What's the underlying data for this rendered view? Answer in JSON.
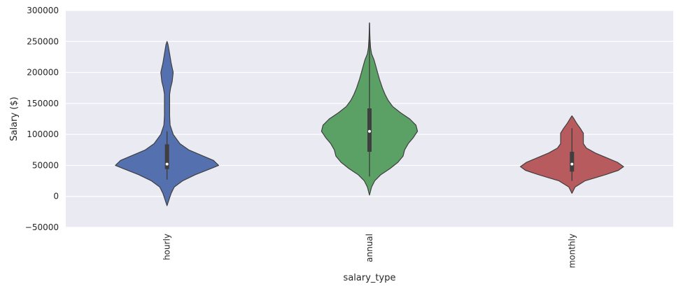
{
  "chart_data": {
    "type": "violin",
    "title": "",
    "xlabel": "salary_type",
    "ylabel": "Salary ($)",
    "ylim": [
      -50000,
      300000
    ],
    "yticks": [
      -50000,
      0,
      50000,
      100000,
      150000,
      200000,
      250000,
      300000
    ],
    "ytick_labels": [
      "−50000",
      "0",
      "50000",
      "100000",
      "150000",
      "200000",
      "250000",
      "300000"
    ],
    "grid": true,
    "categories": [
      "hourly",
      "annual",
      "monthly"
    ],
    "series": [
      {
        "category": "hourly",
        "color": "#5470ae",
        "min": 27000,
        "q1": 44000,
        "median": 52000,
        "q3": 84000,
        "max": 105000,
        "density": [
          [
            -15000,
            0.0
          ],
          [
            -5000,
            0.04
          ],
          [
            5000,
            0.08
          ],
          [
            15000,
            0.14
          ],
          [
            25000,
            0.3
          ],
          [
            35000,
            0.55
          ],
          [
            45000,
            0.85
          ],
          [
            50000,
            1.0
          ],
          [
            58000,
            0.9
          ],
          [
            65000,
            0.7
          ],
          [
            75000,
            0.42
          ],
          [
            85000,
            0.25
          ],
          [
            100000,
            0.12
          ],
          [
            115000,
            0.06
          ],
          [
            130000,
            0.05
          ],
          [
            150000,
            0.05
          ],
          [
            165000,
            0.05
          ],
          [
            175000,
            0.07
          ],
          [
            185000,
            0.1
          ],
          [
            200000,
            0.12
          ],
          [
            215000,
            0.08
          ],
          [
            230000,
            0.05
          ],
          [
            245000,
            0.02
          ],
          [
            250000,
            0.0
          ]
        ]
      },
      {
        "category": "annual",
        "color": "#5ba165",
        "min": 32000,
        "q1": 72000,
        "median": 105000,
        "q3": 142000,
        "max": 280000,
        "density": [
          [
            2000,
            0.0
          ],
          [
            15000,
            0.04
          ],
          [
            25000,
            0.1
          ],
          [
            35000,
            0.22
          ],
          [
            45000,
            0.4
          ],
          [
            55000,
            0.55
          ],
          [
            65000,
            0.65
          ],
          [
            75000,
            0.68
          ],
          [
            85000,
            0.75
          ],
          [
            95000,
            0.85
          ],
          [
            105000,
            0.93
          ],
          [
            115000,
            0.9
          ],
          [
            125000,
            0.78
          ],
          [
            135000,
            0.6
          ],
          [
            145000,
            0.45
          ],
          [
            155000,
            0.36
          ],
          [
            165000,
            0.3
          ],
          [
            175000,
            0.25
          ],
          [
            190000,
            0.19
          ],
          [
            205000,
            0.14
          ],
          [
            220000,
            0.09
          ],
          [
            230000,
            0.04
          ],
          [
            240000,
            0.02
          ],
          [
            255000,
            0.01
          ],
          [
            280000,
            0.0
          ]
        ]
      },
      {
        "category": "monthly",
        "color": "#b85b5e",
        "min": 25000,
        "q1": 40000,
        "median": 52000,
        "q3": 72000,
        "max": 110000,
        "density": [
          [
            5000,
            0.0
          ],
          [
            15000,
            0.06
          ],
          [
            25000,
            0.25
          ],
          [
            35000,
            0.65
          ],
          [
            42000,
            0.9
          ],
          [
            48000,
            1.0
          ],
          [
            55000,
            0.88
          ],
          [
            62000,
            0.68
          ],
          [
            70000,
            0.45
          ],
          [
            78000,
            0.28
          ],
          [
            85000,
            0.22
          ],
          [
            95000,
            0.22
          ],
          [
            102000,
            0.22
          ],
          [
            110000,
            0.16
          ],
          [
            118000,
            0.09
          ],
          [
            125000,
            0.04
          ],
          [
            130000,
            0.0
          ]
        ]
      }
    ]
  }
}
